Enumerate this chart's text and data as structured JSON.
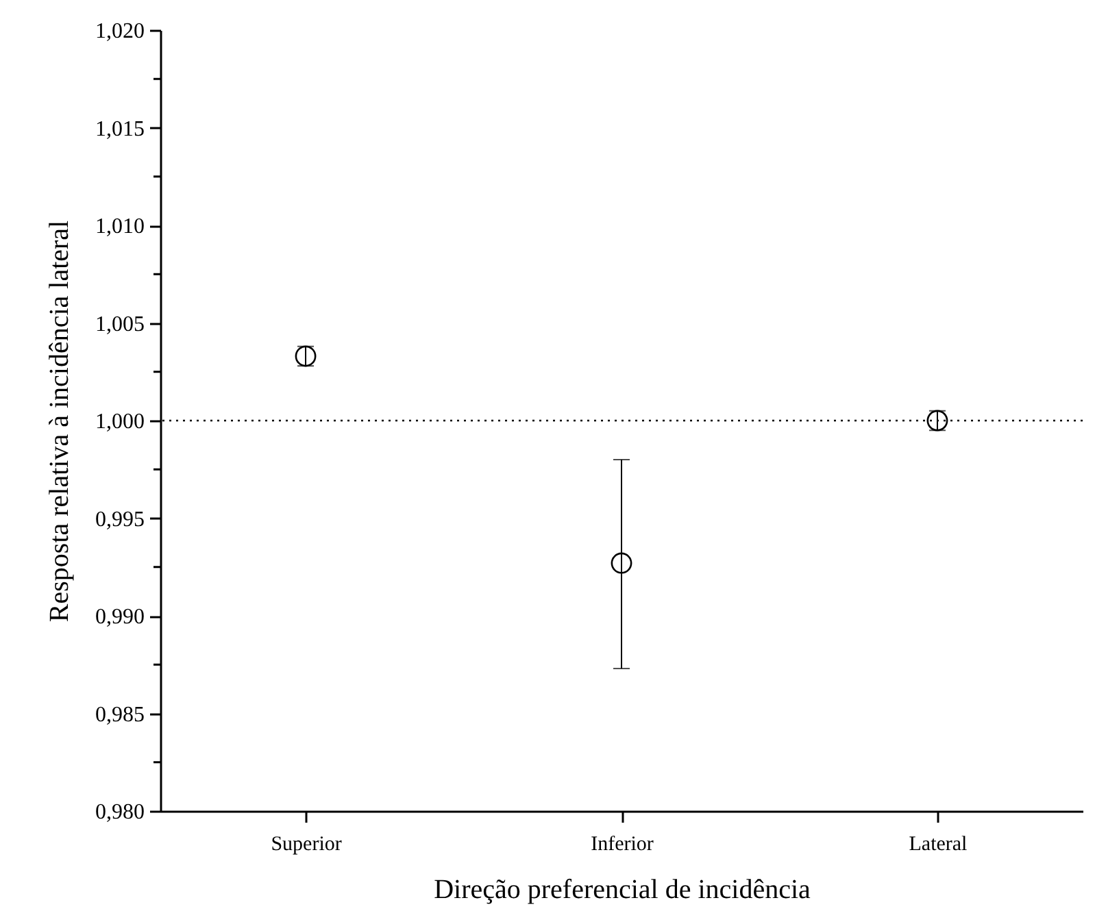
{
  "chart_data": {
    "type": "scatter",
    "xlabel": "Direção preferencial de incidência",
    "ylabel": "Resposta relativa à incidência lateral",
    "categories": [
      "Superior",
      "Inferior",
      "Lateral"
    ],
    "values": [
      1.0033,
      0.9927,
      1.0
    ],
    "errors": [
      0.0005,
      [
        0.9873,
        0.998
      ],
      0.0005
    ],
    "color": "#000000",
    "marker": "circle",
    "grid": false,
    "legend": false,
    "ylim": [
      0.98,
      1.02
    ],
    "yticks": [
      {
        "value": 0.98,
        "label": "0,980"
      },
      {
        "value": 0.9825,
        "label": null
      },
      {
        "value": 0.985,
        "label": "0,985"
      },
      {
        "value": 0.9875,
        "label": null
      },
      {
        "value": 0.99,
        "label": "0,990"
      },
      {
        "value": 0.9925,
        "label": null
      },
      {
        "value": 0.995,
        "label": "0,995"
      },
      {
        "value": 0.9975,
        "label": null
      },
      {
        "value": 1.0,
        "label": "1,000"
      },
      {
        "value": 1.0025,
        "label": null
      },
      {
        "value": 1.005,
        "label": "1,005"
      },
      {
        "value": 1.0075,
        "label": null
      },
      {
        "value": 1.01,
        "label": "1,010"
      },
      {
        "value": 1.0125,
        "label": null
      },
      {
        "value": 1.015,
        "label": "1,015"
      },
      {
        "value": 1.0175,
        "label": null
      },
      {
        "value": 1.02,
        "label": "1,020"
      }
    ],
    "ref_lines": [
      {
        "axis": "y",
        "value": 1.0,
        "line_style": "dotted"
      }
    ]
  }
}
